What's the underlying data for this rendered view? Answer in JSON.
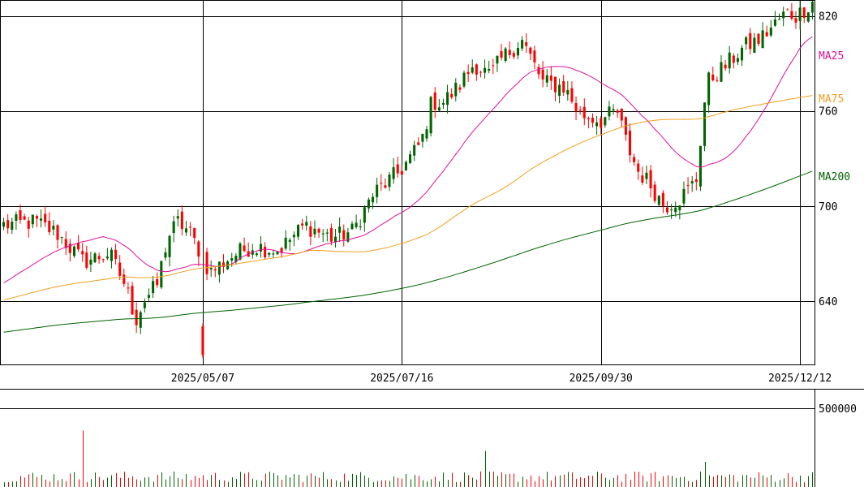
{
  "chart_data": [
    {
      "type": "candlestick",
      "ylim": [
        600,
        830
      ],
      "y_ticks": [
        "820",
        "760",
        "700",
        "640"
      ],
      "x_ticks": [
        "2025/05/07",
        "2025/07/16",
        "2025/09/30",
        "2025/12/12"
      ],
      "grid": true,
      "colors": {
        "up": "#006400",
        "down": "#ff0000"
      },
      "series": [
        {
          "name": "MA25",
          "color": "#e0109a"
        },
        {
          "name": "MA75",
          "color": "#f0a020"
        },
        {
          "name": "MA200",
          "color": "#006400"
        }
      ]
    },
    {
      "type": "bar",
      "ylim": [
        0,
        620000
      ],
      "y_ticks": [
        "500000"
      ],
      "grid": true,
      "colors": {
        "up": "#006400",
        "down": "#ff0000"
      }
    }
  ]
}
